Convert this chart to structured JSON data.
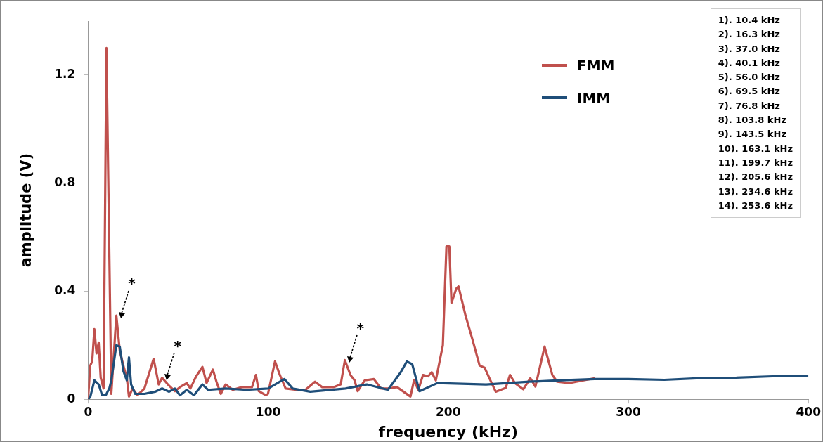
{
  "chart_data": {
    "type": "line",
    "xlabel": "frequency (kHz)",
    "ylabel": "amplitude (V)",
    "xlim": [
      0,
      400
    ],
    "xticks": [
      0,
      100,
      200,
      300,
      400
    ],
    "ylim": [
      0,
      1.4
    ],
    "yticks": [
      0,
      0.4,
      0.8,
      1.2
    ],
    "grid": false,
    "legend": "top right",
    "marker": "none",
    "line_style": "solid",
    "series": [
      {
        "name": "FMM",
        "color": "#c0504d",
        "x": [
          0,
          1.2,
          2.3,
          3.5,
          4.7,
          5.9,
          7,
          8.6,
          10.2,
          12.9,
          15.7,
          17.6,
          19.6,
          21.5,
          22.7,
          24.7,
          27.4,
          31.3,
          36.4,
          39.2,
          41.1,
          44.3,
          48.2,
          51,
          54.8,
          56.8,
          60,
          63.5,
          65.8,
          69.3,
          71.3,
          73.7,
          76.4,
          80.3,
          85.4,
          91,
          93.2,
          94.8,
          98.7,
          99.9,
          103.8,
          106.5,
          109.7,
          115.6,
          120.7,
          126,
          130,
          136.3,
          140.3,
          142.6,
          145.7,
          148,
          149.7,
          153.6,
          158.7,
          162.6,
          166.5,
          171.6,
          179,
          181,
          183.4,
          186,
          188.8,
          190.8,
          193.1,
          197,
          199,
          200.6,
          201.8,
          204.5,
          205.7,
          209.6,
          213.5,
          217.4,
          220.2,
          224.1,
          226.4,
          231.9,
          234.3,
          237,
          241.7,
          245.6,
          248.4,
          253.5,
          257.8,
          260.5,
          267.2,
          271.1,
          281.3
        ],
        "values": [
          0,
          0.125,
          0.14,
          0.26,
          0.17,
          0.21,
          0.08,
          0.04,
          1.3,
          0.02,
          0.31,
          0.18,
          0.125,
          0.08,
          0.01,
          0.04,
          0.015,
          0.04,
          0.15,
          0.055,
          0.08,
          0.055,
          0.03,
          0.045,
          0.06,
          0.04,
          0.085,
          0.12,
          0.06,
          0.11,
          0.065,
          0.02,
          0.055,
          0.035,
          0.045,
          0.045,
          0.09,
          0.03,
          0.015,
          0.02,
          0.14,
          0.09,
          0.04,
          0.035,
          0.035,
          0.065,
          0.045,
          0.045,
          0.055,
          0.145,
          0.09,
          0.07,
          0.03,
          0.07,
          0.075,
          0.04,
          0.04,
          0.045,
          0.01,
          0.07,
          0.035,
          0.09,
          0.085,
          0.1,
          0.07,
          0.2,
          0.566,
          0.566,
          0.357,
          0.41,
          0.418,
          0.31,
          0.22,
          0.125,
          0.117,
          0.06,
          0.028,
          0.042,
          0.09,
          0.06,
          0.037,
          0.078,
          0.047,
          0.195,
          0.09,
          0.065,
          0.06,
          0.065,
          0.078
        ]
      },
      {
        "name": "IMM",
        "color": "#1f4e79",
        "x": [
          0,
          1.2,
          3.5,
          5.9,
          7.8,
          9.8,
          11.8,
          12.9,
          15.7,
          17.6,
          19.6,
          21.5,
          22.7,
          23.9,
          26.2,
          31.3,
          37.2,
          41.1,
          45,
          48.2,
          51,
          54.8,
          58.8,
          63.5,
          66.6,
          76.4,
          88,
          100,
          109,
          113.6,
          123.4,
          143,
          154.8,
          166.5,
          173.6,
          177,
          180,
          184,
          194,
          221,
          245,
          260.5,
          281.3,
          300,
          320,
          340,
          360,
          380,
          400
        ],
        "values": [
          0,
          0.008,
          0.07,
          0.055,
          0.015,
          0.015,
          0.04,
          0.07,
          0.2,
          0.195,
          0.105,
          0.07,
          0.155,
          0.055,
          0.02,
          0.02,
          0.028,
          0.04,
          0.028,
          0.04,
          0.015,
          0.035,
          0.015,
          0.055,
          0.035,
          0.04,
          0.035,
          0.04,
          0.075,
          0.04,
          0.028,
          0.04,
          0.055,
          0.035,
          0.1,
          0.14,
          0.13,
          0.03,
          0.06,
          0.055,
          0.065,
          0.07,
          0.075,
          0.075,
          0.072,
          0.078,
          0.08,
          0.085,
          0.085
        ]
      }
    ],
    "annotations": [
      "1). 10.4 kHz",
      "2). 16.3 kHz",
      "3). 37.0 kHz",
      "4). 40.1 kHz",
      "5). 56.0 kHz",
      "6). 69.5 kHz",
      "7). 76.8 kHz",
      "8). 103.8 kHz",
      "9). 143.5 kHz",
      "10). 163.1 kHz",
      "11). 199.7 kHz",
      "12). 205.6 kHz",
      "13). 234.6 kHz",
      "14). 253.6 kHz",
      {
        "text": "*",
        "x": 15.7,
        "y": 0.31
      },
      {
        "text": "*",
        "x": 41.1,
        "y": 0.08
      },
      {
        "text": "*",
        "x": 142.6,
        "y": 0.145
      }
    ]
  }
}
